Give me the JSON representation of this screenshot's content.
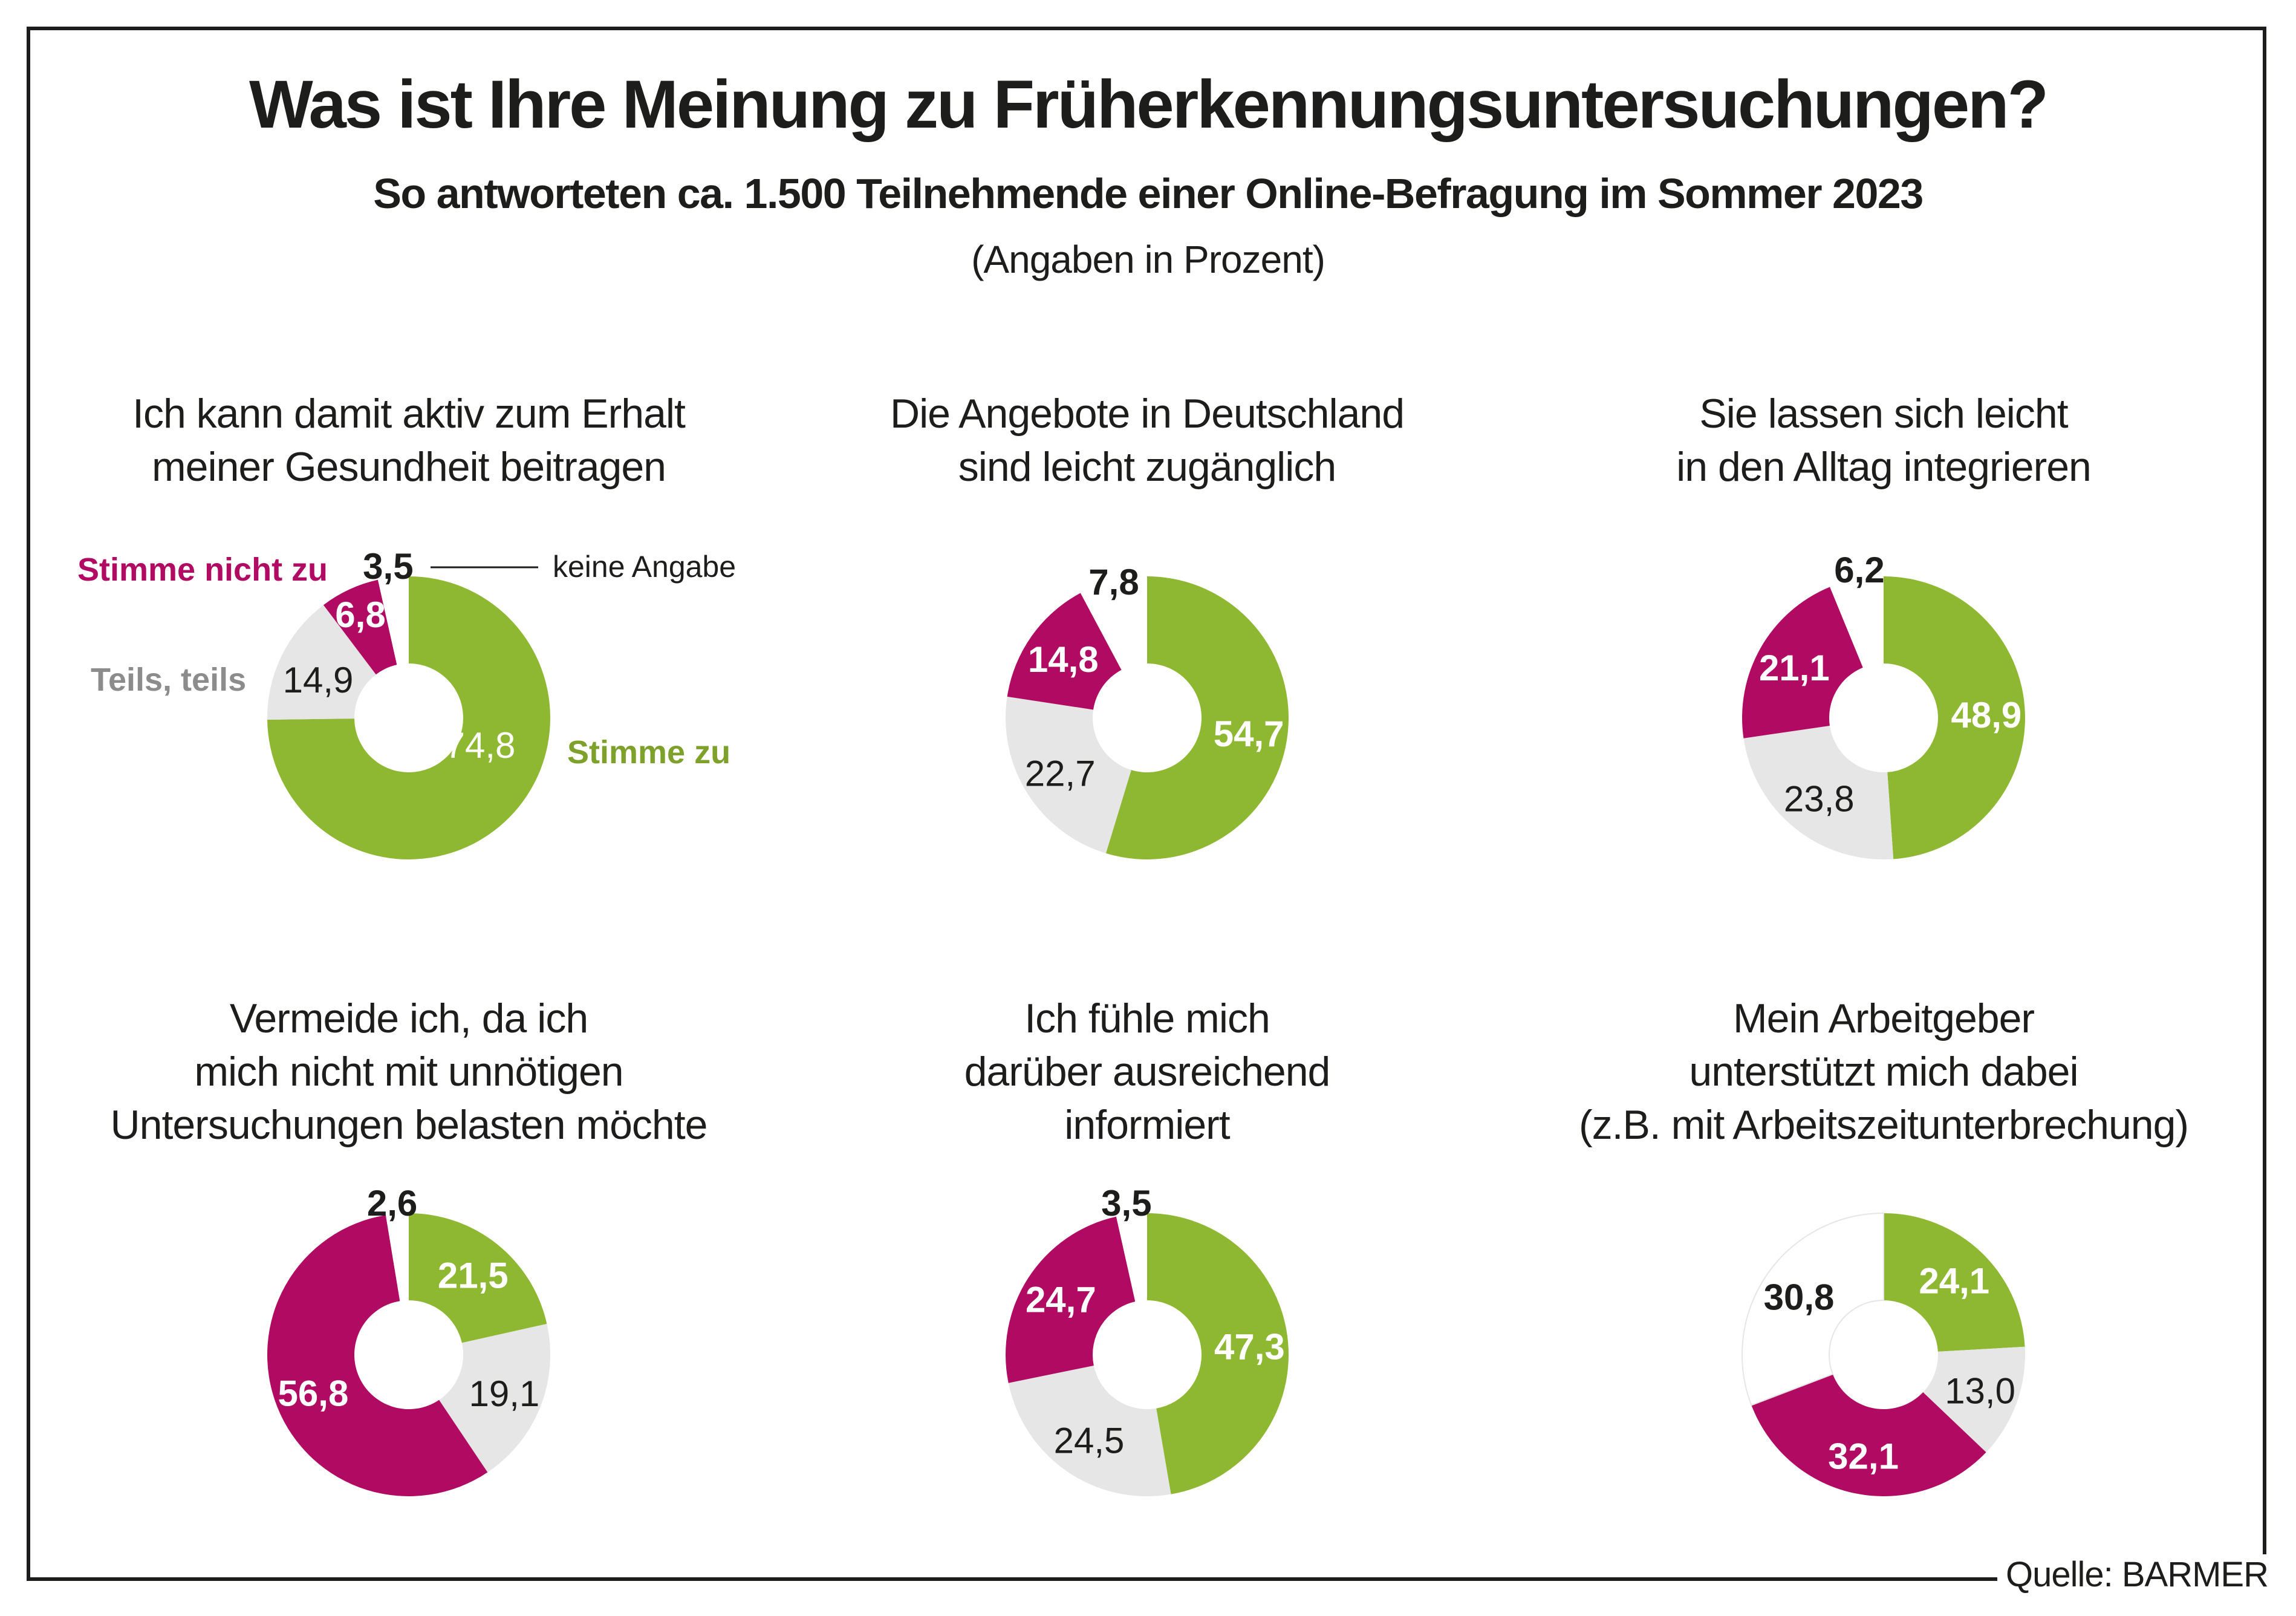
{
  "header": {
    "title": "Was ist Ihre Meinung zu Früherkennungsuntersuchungen?",
    "subtitle": "So antworteten ca. 1.500 Teilnehmende einer Online-Befragung im Sommer 2023",
    "unit_note": "(Angaben in Prozent)"
  },
  "source": "Quelle: BARMER",
  "colors": {
    "stimme_zu": "#8FB832",
    "teils_teils": "#E5E6E5",
    "stimme_nicht_zu": "#B10A62",
    "keine_angabe": "#FFFFFF",
    "legend_stimme_zu": "#7DA12A",
    "legend_teils_teils": "#8C8C8C",
    "legend_stimme_nicht_zu": "#B10A62",
    "text": "#1D1D1B"
  },
  "legend": {
    "stimme_zu": "Stimme zu",
    "teils_teils": "Teils, teils",
    "stimme_nicht_zu": "Stimme nicht zu",
    "keine_angabe": "keine Angabe"
  },
  "chart_data": [
    {
      "type": "pie",
      "variant": "donut",
      "title": "Ich kann damit aktiv zum Erhalt meiner Gesundheit beitragen",
      "title_lines": [
        "Ich kann damit aktiv zum Erhalt",
        "meiner Gesundheit beitragen"
      ],
      "categories": [
        "Stimme zu",
        "Teils, teils",
        "Stimme nicht zu",
        "keine Angabe"
      ],
      "values": [
        74.8,
        14.9,
        6.8,
        3.5
      ],
      "labels": [
        "74,8",
        "14,9",
        "6,8",
        "3,5"
      ],
      "unit": "%"
    },
    {
      "type": "pie",
      "variant": "donut",
      "title": "Die Angebote in Deutschland sind leicht zugänglich",
      "title_lines": [
        "Die Angebote in Deutschland",
        "sind leicht zugänglich"
      ],
      "categories": [
        "Stimme zu",
        "Teils, teils",
        "Stimme nicht zu",
        "keine Angabe"
      ],
      "values": [
        54.7,
        22.7,
        14.8,
        7.8
      ],
      "labels": [
        "54,7",
        "22,7",
        "14,8",
        "7,8"
      ],
      "unit": "%"
    },
    {
      "type": "pie",
      "variant": "donut",
      "title": "Sie lassen sich leicht in den Alltag integrieren",
      "title_lines": [
        "Sie lassen sich leicht",
        "in den Alltag integrieren"
      ],
      "categories": [
        "Stimme zu",
        "Teils, teils",
        "Stimme nicht zu",
        "keine Angabe"
      ],
      "values": [
        48.9,
        23.8,
        21.1,
        6.2
      ],
      "labels": [
        "48,9",
        "23,8",
        "21,1",
        "6,2"
      ],
      "unit": "%"
    },
    {
      "type": "pie",
      "variant": "donut",
      "title": "Vermeide ich, da ich mich nicht mit unnötigen Untersuchungen belasten möchte",
      "title_lines": [
        "Vermeide ich, da ich",
        "mich nicht mit unnötigen",
        "Untersuchungen belasten möchte"
      ],
      "categories": [
        "Stimme zu",
        "Teils, teils",
        "Stimme nicht zu",
        "keine Angabe"
      ],
      "values": [
        21.5,
        19.1,
        56.8,
        2.6
      ],
      "labels": [
        "21,5",
        "19,1",
        "56,8",
        "2,6"
      ],
      "unit": "%"
    },
    {
      "type": "pie",
      "variant": "donut",
      "title": "Ich fühle mich darüber ausreichend informiert",
      "title_lines": [
        "Ich fühle mich",
        "darüber ausreichend",
        "informiert"
      ],
      "categories": [
        "Stimme zu",
        "Teils, teils",
        "Stimme nicht zu",
        "keine Angabe"
      ],
      "values": [
        47.3,
        24.5,
        24.7,
        3.5
      ],
      "labels": [
        "47,3",
        "24,5",
        "24,7",
        "3,5"
      ],
      "unit": "%"
    },
    {
      "type": "pie",
      "variant": "donut",
      "title": "Mein Arbeitgeber unterstützt mich dabei (z.B. mit Arbeitszeitunterbrechung)",
      "title_lines": [
        "Mein Arbeitgeber",
        "unterstützt mich dabei",
        "(z.B. mit Arbeitszeitunterbrechung)"
      ],
      "categories": [
        "Stimme zu",
        "Teils, teils",
        "Stimme nicht zu",
        "keine Angabe"
      ],
      "values": [
        24.1,
        13.0,
        32.1,
        30.8
      ],
      "labels": [
        "24,1",
        "13,0",
        "32,1",
        "30,8"
      ],
      "unit": "%"
    }
  ]
}
